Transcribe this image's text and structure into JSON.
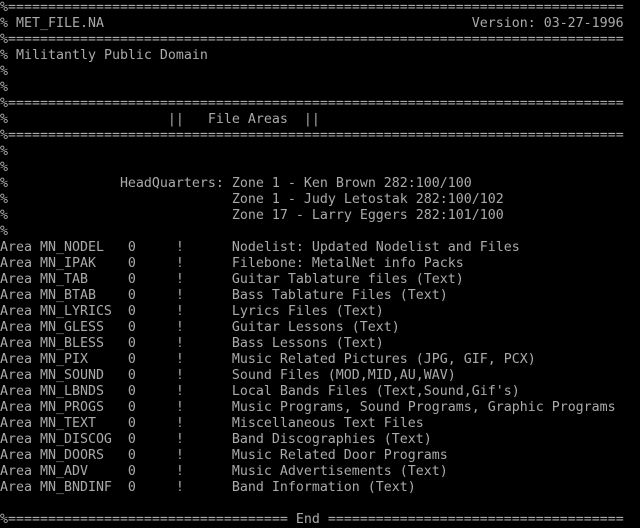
{
  "colors": {
    "foreground": "#aaaaaa",
    "background": "#000000"
  },
  "separator": "%=============================================================================",
  "header": {
    "file_name": "% MET_FILE.NA",
    "version": "Version: 03-27-1996",
    "subtitle": "% Militantly Public Domain",
    "comment_mark": "%",
    "section_title": "%                    ||   File Areas  ||"
  },
  "headquarters": [
    "%              HeadQuarters: Zone 1 - Ken Brown 282:100/100",
    "%                            Zone 1 - Judy Letostak 282:100/102",
    "%                            Zone 17 - Larry Eggers 282:101/100"
  ],
  "areas": [
    {
      "keyword": "Area",
      "tag": "MN_NODEL",
      "level": "0",
      "flag": "!",
      "description": "Nodelist: Updated Nodelist and Files"
    },
    {
      "keyword": "Area",
      "tag": "MN_IPAK",
      "level": "0",
      "flag": "!",
      "description": "Filebone: MetalNet info Packs"
    },
    {
      "keyword": "Area",
      "tag": "MN_TAB",
      "level": "0",
      "flag": "!",
      "description": "Guitar Tablature files (Text)"
    },
    {
      "keyword": "Area",
      "tag": "MN_BTAB",
      "level": "0",
      "flag": "!",
      "description": "Bass Tablature Files (Text)"
    },
    {
      "keyword": "Area",
      "tag": "MN_LYRICS",
      "level": "0",
      "flag": "!",
      "description": "Lyrics Files (Text)"
    },
    {
      "keyword": "Area",
      "tag": "MN_GLESS",
      "level": "0",
      "flag": "!",
      "description": "Guitar Lessons (Text)"
    },
    {
      "keyword": "Area",
      "tag": "MN_BLESS",
      "level": "0",
      "flag": "!",
      "description": "Bass Lessons (Text)"
    },
    {
      "keyword": "Area",
      "tag": "MN_PIX",
      "level": "0",
      "flag": "!",
      "description": "Music Related Pictures (JPG, GIF, PCX)"
    },
    {
      "keyword": "Area",
      "tag": "MN_SOUND",
      "level": "0",
      "flag": "!",
      "description": "Sound Files (MOD,MID,AU,WAV)"
    },
    {
      "keyword": "Area",
      "tag": "MN_LBNDS",
      "level": "0",
      "flag": "!",
      "description": "Local Bands Files (Text,Sound,Gif's)"
    },
    {
      "keyword": "Area",
      "tag": "MN_PROGS",
      "level": "0",
      "flag": "!",
      "description": "Music Programs, Sound Programs, Graphic Programs"
    },
    {
      "keyword": "Area",
      "tag": "MN_TEXT",
      "level": "0",
      "flag": "!",
      "description": "Miscellaneous Text Files"
    },
    {
      "keyword": "Area",
      "tag": "MN_DISCOG",
      "level": "0",
      "flag": "!",
      "description": "Band Discographies (Text)"
    },
    {
      "keyword": "Area",
      "tag": "MN_DOORS",
      "level": "0",
      "flag": "!",
      "description": "Music Related Door Programs"
    },
    {
      "keyword": "Area",
      "tag": "MN_ADV",
      "level": "0",
      "flag": "!",
      "description": "Music Advertisements (Text)"
    },
    {
      "keyword": "Area",
      "tag": "MN_BNDINF",
      "level": "0",
      "flag": "!",
      "description": "Band Information (Text)"
    }
  ],
  "footer": "%=================================== End ====================================="
}
